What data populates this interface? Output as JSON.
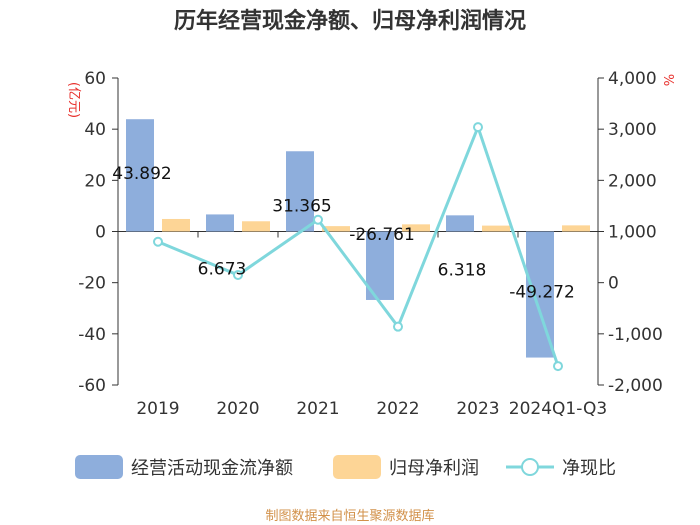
{
  "chart_data": {
    "type": "bar",
    "title": "历年经营现金净额、归母净利润情况",
    "categories": [
      "2019",
      "2020",
      "2021",
      "2022",
      "2023",
      "2024Q1-Q3"
    ],
    "series": [
      {
        "name": "经营活动现金流净额",
        "type": "bar",
        "axis": "left",
        "color": "#8eaedc",
        "values": [
          43.892,
          6.673,
          31.365,
          -26.761,
          6.318,
          -49.272
        ],
        "data_labels": [
          "43.892",
          "6.673",
          "31.365",
          "-26.761",
          "6.318",
          "-49.272"
        ]
      },
      {
        "name": "归母净利润",
        "type": "bar",
        "axis": "left",
        "color": "#fdd596",
        "values": [
          4.9,
          4.0,
          2.1,
          2.8,
          2.3,
          2.4
        ]
      },
      {
        "name": "净现比",
        "type": "line",
        "axis": "right",
        "color": "#7fd7dc",
        "values": [
          800,
          150,
          1230,
          -860,
          3040,
          -1630
        ]
      }
    ],
    "y_left": {
      "label": "(亿元)",
      "lim": [
        -60,
        60
      ],
      "ticks": [
        "60",
        "40",
        "20",
        "0",
        "-20",
        "-40",
        "-60"
      ]
    },
    "y_right": {
      "label": "%",
      "lim": [
        -2000,
        4000
      ],
      "ticks": [
        "4,000",
        "3,000",
        "2,000",
        "1,000",
        "0",
        "-1,000",
        "-2,000"
      ]
    },
    "legend_position": "bottom",
    "grid": false
  },
  "source": "制图数据来自恒生聚源数据库"
}
